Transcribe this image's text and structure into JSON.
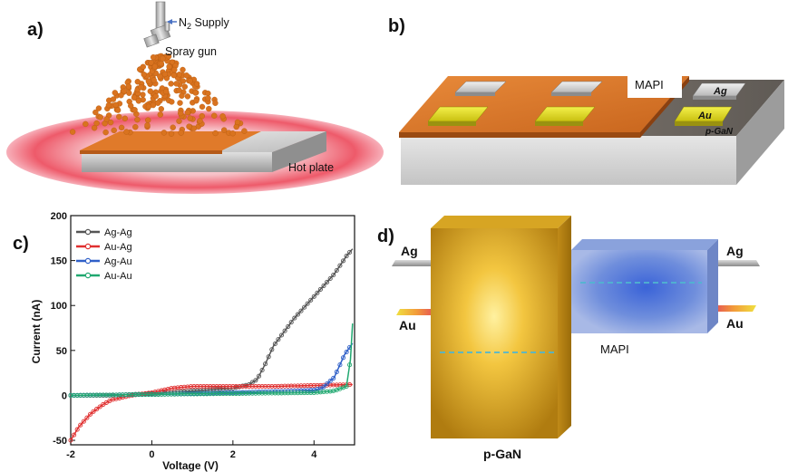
{
  "panels": {
    "a": "a)",
    "b": "b)",
    "c": "c)",
    "d": "d)"
  },
  "panel_a": {
    "n2_main": "N",
    "n2_sub": "2",
    "n2_rest": " Supply",
    "spray_gun": "Spray gun",
    "hot_plate": "Hot plate"
  },
  "panel_b": {
    "mapi": "MAPI",
    "ag": "Ag",
    "au": "Au",
    "pgan": "p-GaN"
  },
  "panel_d": {
    "ag_left": "Ag",
    "au_left": "Au",
    "ag_right": "Ag",
    "au_right": "Au",
    "mapi": "MAPI",
    "pgan": "p-GaN"
  },
  "chart_data": {
    "type": "line",
    "xlabel": "Voltage (V)",
    "ylabel": "Current (nA)",
    "xlim": [
      -2,
      5
    ],
    "ylim": [
      -55,
      200
    ],
    "xticks": [
      "-2",
      "0",
      "2",
      "4"
    ],
    "yticks": [
      "-50",
      "0",
      "50",
      "100",
      "150",
      "200"
    ],
    "legend_position": "top-left",
    "series": [
      {
        "name": "Ag-Ag",
        "color": "#555555",
        "x": [
          -2,
          -1,
          0,
          1,
          2,
          2.4,
          2.6,
          2.8,
          3.0,
          3.5,
          4.0,
          4.5,
          4.8,
          4.95
        ],
        "y": [
          0,
          0,
          2,
          5,
          8,
          12,
          18,
          35,
          55,
          85,
          110,
          135,
          155,
          163
        ]
      },
      {
        "name": "Au-Ag",
        "color": "#e03030",
        "x": [
          -2,
          -1.8,
          -1.5,
          -1.2,
          -1,
          -0.5,
          0,
          0.5,
          1,
          2,
          3,
          4,
          4.95
        ],
        "y": [
          -50,
          -35,
          -20,
          -10,
          -5,
          0,
          3,
          8,
          10,
          10,
          10,
          11,
          12
        ]
      },
      {
        "name": "Ag-Au",
        "color": "#3060c8",
        "x": [
          -2,
          0,
          2,
          3.5,
          4.0,
          4.2,
          4.5,
          4.75,
          4.95
        ],
        "y": [
          0,
          1,
          3,
          5,
          6,
          8,
          20,
          45,
          58
        ]
      },
      {
        "name": "Au-Au",
        "color": "#20a870",
        "x": [
          -2,
          0,
          2,
          4,
          4.5,
          4.8,
          4.9,
          4.95
        ],
        "y": [
          0,
          1,
          2,
          3,
          5,
          10,
          40,
          80
        ]
      }
    ]
  },
  "colors": {
    "mapi_orange": "#e07a2a",
    "au_yellow": "#e8e020",
    "ag_gray": "#cfcfcf",
    "pgan_gold": "#e9b22a",
    "mapi_blue": "#4a6fcf"
  }
}
